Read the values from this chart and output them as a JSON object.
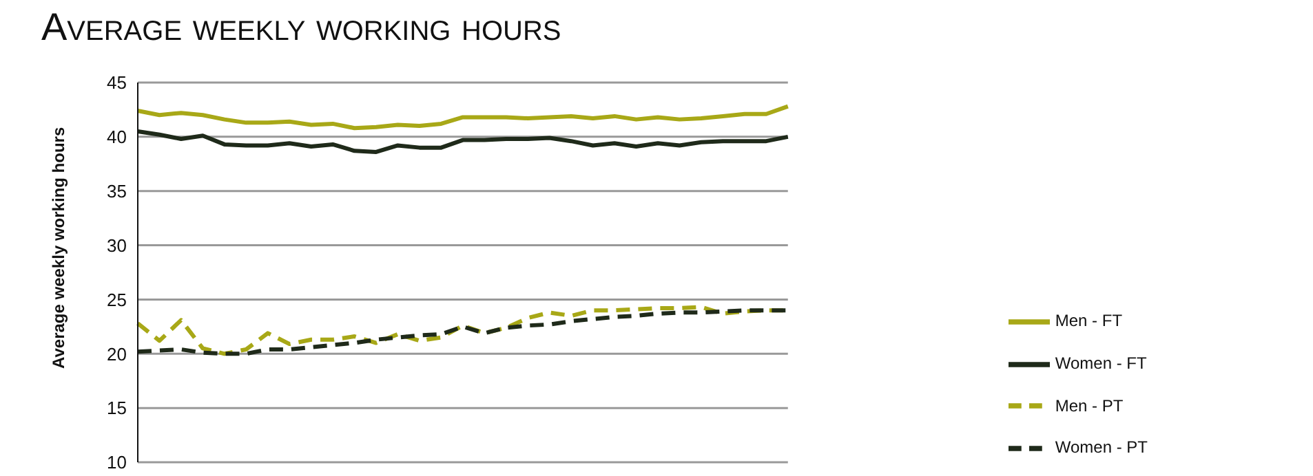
{
  "chart_data": {
    "type": "line",
    "title": "Average weekly working hours",
    "ylabel": "Average weekly working hours",
    "categories": [
      null,
      null,
      null,
      null,
      null,
      null,
      null,
      null,
      null,
      null,
      null,
      null,
      null,
      null,
      null,
      null,
      null,
      null,
      null,
      null,
      null,
      null,
      null,
      null,
      null,
      null,
      null,
      null,
      null,
      null,
      null
    ],
    "series": [
      {
        "name": "Men - FT",
        "color": "#a8a817",
        "line_style": "solid",
        "values": [
          42.4,
          42.0,
          42.2,
          42.0,
          41.6,
          41.3,
          41.3,
          41.4,
          41.1,
          41.2,
          40.8,
          40.9,
          41.1,
          41.0,
          41.2,
          41.8,
          41.8,
          41.8,
          41.7,
          41.8,
          41.9,
          41.7,
          41.9,
          41.6,
          41.8,
          41.6,
          41.7,
          41.9,
          42.1,
          42.1,
          42.8
        ]
      },
      {
        "name": "Women - FT",
        "color": "#1f2a1a",
        "line_style": "solid",
        "values": [
          40.5,
          40.2,
          39.8,
          40.1,
          39.3,
          39.2,
          39.2,
          39.4,
          39.1,
          39.3,
          38.7,
          38.6,
          39.2,
          39.0,
          39.0,
          39.7,
          39.7,
          39.8,
          39.8,
          39.9,
          39.6,
          39.2,
          39.4,
          39.1,
          39.4,
          39.2,
          39.5,
          39.6,
          39.6,
          39.6,
          40.0
        ]
      },
      {
        "name": "Men - PT",
        "color": "#a8a817",
        "line_style": "dashed",
        "values": [
          22.8,
          21.2,
          23.1,
          20.5,
          20.0,
          20.4,
          21.9,
          20.9,
          21.3,
          21.3,
          21.6,
          21.0,
          21.8,
          21.2,
          21.5,
          22.6,
          21.9,
          22.4,
          23.3,
          23.8,
          23.5,
          24.0,
          24.0,
          24.1,
          24.2,
          24.2,
          24.3,
          23.7,
          23.9,
          24.0,
          24.0
        ]
      },
      {
        "name": "Women - PT",
        "color": "#1f2a1a",
        "line_style": "dashed",
        "values": [
          20.2,
          20.3,
          20.4,
          20.1,
          20.0,
          20.0,
          20.4,
          20.4,
          20.6,
          20.8,
          21.0,
          21.3,
          21.5,
          21.7,
          21.8,
          22.5,
          21.9,
          22.4,
          22.6,
          22.7,
          23.0,
          23.2,
          23.4,
          23.5,
          23.7,
          23.8,
          23.8,
          23.9,
          24.0,
          24.0,
          24.0
        ]
      }
    ],
    "ylim": [
      10,
      45
    ],
    "yticks": [
      10,
      15,
      20,
      25,
      30,
      35,
      40,
      45
    ],
    "grid": "y",
    "legend": "right",
    "tick_labels": "y"
  }
}
